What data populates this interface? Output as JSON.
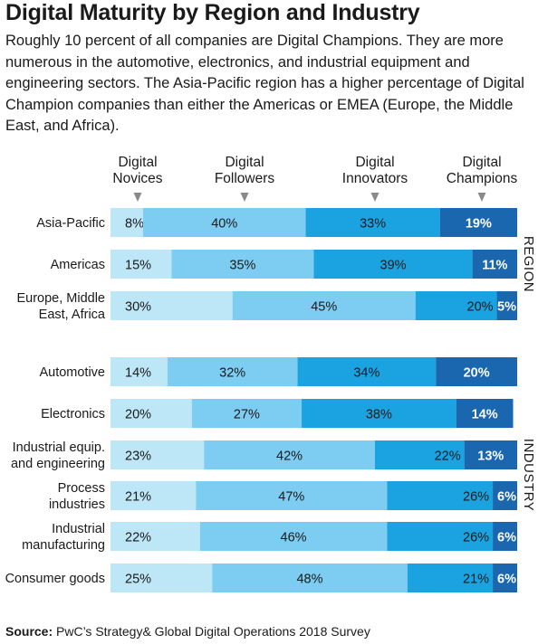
{
  "title": "Digital Maturity by Region and Industry",
  "subtitle": "Roughly 10 percent of all companies are Digital Champions. They are more numerous in the automotive, electronics, and industrial equipment and engineering sectors. The Asia-Pacific region has a higher percentage of Digital Champion companies than either the Americas or EMEA (Europe, the Middle East, and Africa).",
  "source_label": "Source:",
  "source_text": "PwC’s Strategy& Global Digital Operations 2018 Survey",
  "colors": {
    "novices": "#bde6f7",
    "followers": "#7dcdf2",
    "innovators": "#1aa3e0",
    "champions": "#1a67b0"
  },
  "chart_data": {
    "type": "bar",
    "orientation": "horizontal",
    "stacked": true,
    "percent": true,
    "xlim": [
      0,
      100
    ],
    "series": [
      {
        "name": "Digital Novices",
        "label_lines": [
          "Digital",
          "Novices"
        ],
        "values": [
          8,
          15,
          30,
          14,
          20,
          23,
          21,
          22,
          25
        ]
      },
      {
        "name": "Digital Followers",
        "label_lines": [
          "Digital",
          "Followers"
        ],
        "values": [
          40,
          35,
          45,
          32,
          27,
          42,
          47,
          46,
          48
        ]
      },
      {
        "name": "Digital Innovators",
        "label_lines": [
          "Digital",
          "Innovators"
        ],
        "values": [
          33,
          39,
          20,
          34,
          38,
          22,
          26,
          26,
          21
        ]
      },
      {
        "name": "Digital Champions",
        "label_lines": [
          "Digital",
          "Champions"
        ],
        "values": [
          19,
          11,
          5,
          20,
          14,
          13,
          6,
          6,
          6
        ]
      }
    ],
    "categories": [
      "Asia-Pacific",
      "Americas",
      "Europe, Middle East, Africa",
      "Automotive",
      "Electronics",
      "Industrial equip. and engineering",
      "Process industries",
      "Industrial manufacturing",
      "Consumer goods"
    ],
    "category_label_lines": [
      [
        "Asia-Pacific"
      ],
      [
        "Americas"
      ],
      [
        "Europe, Middle",
        "East, Africa"
      ],
      [
        "Automotive"
      ],
      [
        "Electronics"
      ],
      [
        "Industrial equip.",
        "and engineering"
      ],
      [
        "Process",
        "industries"
      ],
      [
        "Industrial",
        "manufacturing"
      ],
      [
        "Consumer goods"
      ]
    ],
    "groups": [
      {
        "name": "REGION",
        "categories": [
          "Asia-Pacific",
          "Americas",
          "Europe, Middle East, Africa"
        ]
      },
      {
        "name": "INDUSTRY",
        "categories": [
          "Automotive",
          "Electronics",
          "Industrial equip. and engineering",
          "Process industries",
          "Industrial manufacturing",
          "Consumer goods"
        ]
      }
    ]
  }
}
